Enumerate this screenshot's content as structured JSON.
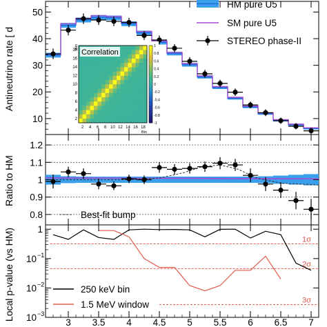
{
  "chart_data": [
    {
      "panel": "top",
      "type": "line",
      "ylabel": "Antineutrino rate [ d",
      "ylim": [
        4,
        54
      ],
      "xlim": [
        2.625,
        7.125
      ],
      "yticks": [
        "10",
        "20",
        "30",
        "40",
        "50"
      ],
      "bin_edges": [
        2.625,
        2.875,
        3.125,
        3.375,
        3.625,
        3.875,
        4.125,
        4.375,
        4.625,
        4.875,
        5.125,
        5.375,
        5.625,
        5.875,
        6.125,
        6.375,
        6.625,
        6.875,
        7.125
      ],
      "series": [
        {
          "name": "HM pure U5",
          "style": "band",
          "color": "#3aa0ee",
          "values": [
            33.8,
            45.0,
            47.0,
            48.0,
            47.8,
            45.6,
            42.2,
            38.6,
            34.4,
            30.2,
            25.6,
            21.6,
            17.6,
            14.3,
            11.8,
            9.3,
            7.7,
            6.3
          ],
          "half_width": [
            0.9,
            0.9,
            0.9,
            0.9,
            0.9,
            0.9,
            0.8,
            0.8,
            0.7,
            0.7,
            0.6,
            0.5,
            0.5,
            0.4,
            0.4,
            0.4,
            0.4,
            0.4
          ]
        },
        {
          "name": "SM pure U5",
          "style": "step",
          "color": "#a64ad0",
          "values": [
            34.2,
            45.6,
            47.6,
            48.6,
            48.3,
            46.1,
            42.7,
            39.1,
            34.8,
            30.6,
            26.0,
            22.0,
            18.0,
            14.7,
            12.1,
            9.6,
            7.9,
            6.5
          ]
        },
        {
          "name": "STEREO phase-II",
          "style": "points",
          "color": "#000000",
          "x": [
            2.75,
            3.0,
            3.25,
            3.5,
            3.75,
            4.0,
            4.25,
            4.5,
            4.75,
            5.0,
            5.25,
            5.5,
            5.75,
            6.0,
            6.25,
            6.5,
            6.75,
            7.0
          ],
          "values": [
            34.3,
            43.2,
            47.5,
            47.0,
            46.5,
            46.1,
            41.2,
            39.5,
            36.4,
            31.5,
            26.8,
            23.2,
            19.9,
            15.1,
            12.2,
            9.2,
            7.1,
            5.4
          ],
          "err": [
            1.2,
            1.2,
            1.2,
            1.1,
            1.0,
            1.0,
            0.9,
            0.9,
            0.8,
            0.8,
            0.7,
            0.6,
            0.6,
            0.5,
            0.5,
            0.4,
            0.4,
            0.4
          ]
        }
      ],
      "legend": "top-right"
    },
    {
      "panel": "inset",
      "type": "heatmap",
      "title": "Correlation",
      "xlabel": "Bin",
      "ylabel": "Bin",
      "ticks": [
        "2",
        "4",
        "6",
        "8",
        "10",
        "12",
        "14",
        "16",
        "18"
      ],
      "n_bins": 18,
      "colorbar_range": [
        -1,
        1
      ],
      "colorbar_ticks": [
        "1",
        "0.8",
        "0.6",
        "0.4",
        "0.2",
        "0",
        "-0.2",
        "-0.4",
        "-0.6",
        "-0.8",
        "-1"
      ]
    },
    {
      "panel": "middle",
      "type": "line",
      "ylabel": "Ratio to HM",
      "ylim": [
        0.74,
        1.26
      ],
      "yticks": [
        "0.8",
        "0.9",
        "1",
        "1.1",
        "1.2"
      ],
      "reference_lines": [
        0.9,
        1.0,
        1.1,
        1.2,
        0.8
      ],
      "series": [
        {
          "name": "HM band",
          "style": "band",
          "color": "#3aa0ee",
          "half_width": [
            0.028,
            0.02,
            0.018,
            0.018,
            0.018,
            0.018,
            0.018,
            0.018,
            0.018,
            0.018,
            0.018,
            0.018,
            0.018,
            0.018,
            0.02,
            0.024,
            0.028,
            0.032
          ]
        },
        {
          "name": "SM ratio",
          "style": "line",
          "color": "#a64ad0",
          "x": [
            2.625,
            7.125
          ],
          "values": [
            1.01,
            1.005
          ]
        },
        {
          "name": "Best-fit bump",
          "style": "dashed",
          "color": "#333333",
          "x": [
            2.625,
            4.0,
            4.5,
            4.9,
            5.2,
            5.5,
            5.8,
            6.1,
            6.5,
            7.125
          ],
          "values": [
            1.0,
            1.0,
            1.01,
            1.04,
            1.075,
            1.085,
            1.06,
            1.01,
            0.98,
            0.97
          ]
        },
        {
          "name": "data",
          "style": "points",
          "color": "#000000",
          "x": [
            2.75,
            3.0,
            3.25,
            3.5,
            3.75,
            4.0,
            4.25,
            4.5,
            4.75,
            5.0,
            5.25,
            5.5,
            5.75,
            6.0,
            6.25,
            6.5,
            6.75,
            7.0
          ],
          "values": [
            0.99,
            1.045,
            1.035,
            0.975,
            0.965,
            1.005,
            1.0,
            1.07,
            1.06,
            1.065,
            1.075,
            1.095,
            1.085,
            1.025,
            0.975,
            0.94,
            0.88,
            0.83
          ],
          "err": [
            0.04,
            0.03,
            0.03,
            0.03,
            0.025,
            0.025,
            0.025,
            0.03,
            0.03,
            0.03,
            0.03,
            0.035,
            0.035,
            0.04,
            0.04,
            0.045,
            0.05,
            0.06
          ]
        }
      ],
      "legend_label": "Best-fit bump"
    },
    {
      "panel": "bottom",
      "type": "line",
      "ylabel": "Local p-value (vs HM)",
      "yscale": "log",
      "ylim": [
        0.001,
        1.4
      ],
      "yticks": [
        {
          "value": 1,
          "base": "1",
          "exp": ""
        },
        {
          "value": 0.1,
          "base": "10",
          "exp": "−1"
        },
        {
          "value": 0.01,
          "base": "10",
          "exp": "−2"
        },
        {
          "value": 0.001,
          "base": "10",
          "exp": "−3"
        }
      ],
      "xticks": [
        "3",
        "3.5",
        "4",
        "4.5",
        "5",
        "5.5",
        "6",
        "6.5",
        "7"
      ],
      "sigma_lines": [
        {
          "label": "1σ",
          "p": 0.3173,
          "x_start": 2.7,
          "color": "#e05a4a"
        },
        {
          "label": "2σ",
          "p": 0.0455,
          "x_start": 2.7,
          "color": "#e05a4a"
        },
        {
          "label": "3σ",
          "p": 0.0027,
          "x_start": 4.5,
          "color": "#e05a4a"
        }
      ],
      "series": [
        {
          "name": "250 keV bin",
          "color": "#000000",
          "x": [
            2.75,
            3.0,
            3.25,
            3.5,
            3.75,
            4.0,
            4.25,
            4.5,
            4.75,
            5.0,
            5.25,
            5.5,
            5.75,
            6.0,
            6.25,
            6.5,
            6.75,
            7.0
          ],
          "values": [
            0.65,
            0.45,
            0.95,
            0.52,
            0.45,
            0.95,
            1.0,
            0.97,
            0.98,
            0.95,
            0.55,
            0.99,
            1.0,
            0.5,
            0.85,
            0.65,
            0.07,
            0.04
          ]
        },
        {
          "name": "1.5 MeV window",
          "color": "#e05a4a",
          "x": [
            3.5,
            3.75,
            4.0,
            4.25,
            4.5,
            4.75,
            5.0,
            5.25,
            5.5,
            5.75,
            6.0,
            6.25,
            6.5
          ],
          "values": [
            0.9,
            0.9,
            0.55,
            0.1,
            0.05,
            0.05,
            0.012,
            0.008,
            0.012,
            0.04,
            0.04,
            0.12,
            0.02
          ]
        }
      ],
      "legend": "bottom-left"
    }
  ],
  "x_axis": {
    "ticks": [
      "3",
      "3.5",
      "4",
      "4.5",
      "5",
      "5.5",
      "6",
      "6.5",
      "7"
    ],
    "values": [
      3,
      3.5,
      4,
      4.5,
      5,
      5.5,
      6,
      6.5,
      7
    ]
  }
}
